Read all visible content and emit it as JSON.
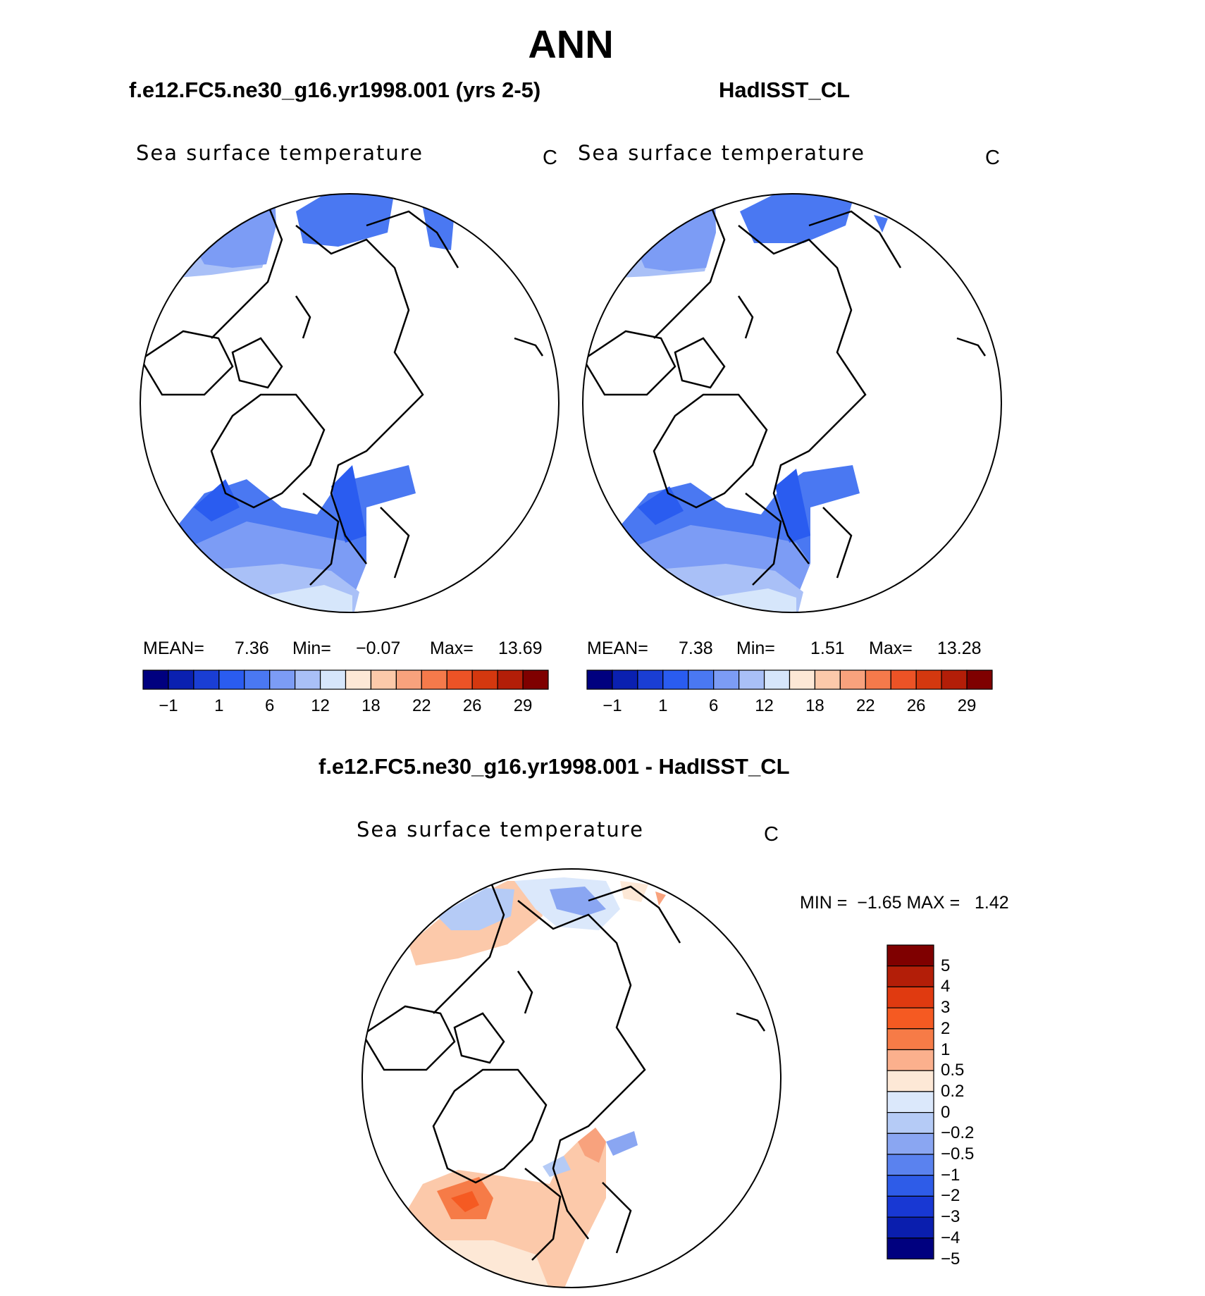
{
  "figure": {
    "title": "ANN",
    "case_label": "f.e12.FC5.ne30_g16.yr1998.001 (yrs 2-5)",
    "obs_label": "HadISST_CL",
    "diff_label": "f.e12.FC5.ne30_g16.yr1998.001 - HadISST_CL"
  },
  "panels": [
    {
      "id": "model",
      "variable": "Sea surface temperature",
      "units": "C",
      "mean_label": "MEAN=",
      "mean_value": "7.36",
      "min_label": "Min=",
      "min_value": "−0.07",
      "max_label": "Max=",
      "max_value": "13.69"
    },
    {
      "id": "observation",
      "variable": "Sea surface temperature",
      "units": "C",
      "mean_label": "MEAN=",
      "mean_value": "7.38",
      "min_label": "Min=",
      "min_value": "1.51",
      "max_label": "Max=",
      "max_value": "13.28"
    },
    {
      "id": "difference",
      "variable": "Sea surface temperature",
      "units": "C",
      "minmax_text": "MIN =  −1.65 MAX =   1.42"
    }
  ],
  "abs_colorbar": {
    "colors": [
      "#00007f",
      "#0a20b0",
      "#1a3ed4",
      "#2a5cf0",
      "#4a78f2",
      "#7c9cf5",
      "#a9c0f7",
      "#d6e6fb",
      "#fde8d6",
      "#fcc9aa",
      "#f8a27d",
      "#f57a4b",
      "#ec5326",
      "#d4380f",
      "#b31e08",
      "#7f0000"
    ],
    "tick_labels": [
      "−1",
      "1",
      "6",
      "12",
      "18",
      "22",
      "26",
      "29"
    ]
  },
  "diff_colorbar": {
    "colors": [
      "#7f0000",
      "#b31e08",
      "#e03a10",
      "#f55a22",
      "#f67b47",
      "#fbb08d",
      "#fde8d6",
      "#dbe8fb",
      "#b5cbf6",
      "#8aa6f2",
      "#5a82ef",
      "#2e5ce8",
      "#1838d3",
      "#0a1eae",
      "#00007f"
    ],
    "tick_labels": [
      "5",
      "4",
      "3",
      "2",
      "1",
      "0.5",
      "0.2",
      "0",
      "−0.2",
      "−0.5",
      "−1",
      "−2",
      "−3",
      "−4",
      "−5"
    ]
  }
}
